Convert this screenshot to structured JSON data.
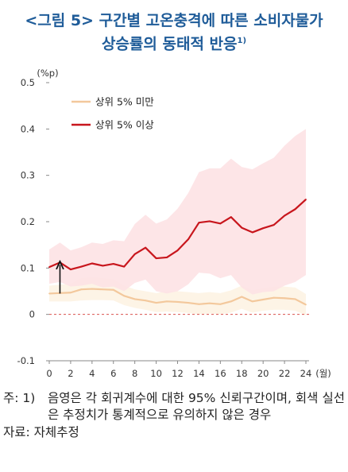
{
  "title": {
    "line1": "<그림 5> 구간별 고온충격에 따른 소비자물가",
    "line2": "상승률의 동태적 반응",
    "footnote_mark": "1)"
  },
  "notes": {
    "prefix": "주: 1)",
    "text": "음영은 각 회귀계수에 대한 95% 신뢰구간이며, 회색 실선은 추정치가 통계적으로 유의하지 않은 경우",
    "source": "자료: 자체추정"
  },
  "colors": {
    "title": "#1f5c99",
    "upper_line": "#c8161d",
    "upper_band": "#fde2e4",
    "lower_line": "#f3c89c",
    "lower_band": "#fdf3e3",
    "zero_line": "#d9534f"
  },
  "chart_data": {
    "type": "line",
    "ylabel": "(%p)",
    "xunit": "(월)",
    "ylim": [
      -0.1,
      0.5
    ],
    "yticks": [
      -0.1,
      0,
      0.1,
      0.2,
      0.3,
      0.4,
      0.5
    ],
    "ytick_labels": [
      "-0.1",
      "0",
      "0.1",
      "0.2",
      "0.3",
      "0.4",
      "0.5"
    ],
    "xlim": [
      0,
      24
    ],
    "xticks": [
      0,
      2,
      4,
      6,
      8,
      10,
      12,
      14,
      16,
      18,
      20,
      22,
      24
    ],
    "xtick_labels": [
      "0",
      "2",
      "4",
      "6",
      "8",
      "10",
      "12",
      "14",
      "16",
      "18",
      "20",
      "22",
      "24"
    ],
    "legend_position": "top-left",
    "x": [
      0,
      1,
      2,
      3,
      4,
      5,
      6,
      7,
      8,
      9,
      10,
      11,
      12,
      13,
      14,
      15,
      16,
      17,
      18,
      19,
      20,
      21,
      22,
      23,
      24
    ],
    "series": [
      {
        "name": "상위 5% 미만",
        "values": [
          0.045,
          0.046,
          0.047,
          0.054,
          0.055,
          0.054,
          0.053,
          0.04,
          0.033,
          0.03,
          0.025,
          0.028,
          0.027,
          0.025,
          0.022,
          0.024,
          0.022,
          0.028,
          0.038,
          0.028,
          0.032,
          0.036,
          0.035,
          0.033,
          0.021
        ],
        "band_low": [
          0.028,
          0.028,
          0.028,
          0.03,
          0.031,
          0.031,
          0.03,
          0.02,
          0.014,
          0.01,
          0.005,
          0.006,
          0.005,
          0.003,
          0.0,
          0.002,
          0.0,
          0.004,
          0.012,
          0.004,
          0.008,
          0.01,
          0.01,
          0.008,
          -0.002
        ],
        "band_high": [
          0.062,
          0.064,
          0.066,
          0.078,
          0.08,
          0.078,
          0.076,
          0.062,
          0.054,
          0.05,
          0.046,
          0.05,
          0.05,
          0.048,
          0.046,
          0.048,
          0.046,
          0.052,
          0.062,
          0.052,
          0.056,
          0.06,
          0.06,
          0.058,
          0.044
        ]
      },
      {
        "name": "상위 5% 이상",
        "values": [
          0.102,
          0.112,
          0.097,
          0.103,
          0.11,
          0.105,
          0.109,
          0.103,
          0.13,
          0.144,
          0.121,
          0.123,
          0.138,
          0.162,
          0.198,
          0.201,
          0.196,
          0.21,
          0.187,
          0.177,
          0.186,
          0.193,
          0.213,
          0.227,
          0.248
        ],
        "band_low": [
          0.066,
          0.07,
          0.06,
          0.062,
          0.066,
          0.058,
          0.06,
          0.05,
          0.068,
          0.075,
          0.05,
          0.045,
          0.05,
          0.065,
          0.09,
          0.088,
          0.078,
          0.085,
          0.058,
          0.043,
          0.048,
          0.05,
          0.062,
          0.07,
          0.085
        ],
        "band_high": [
          0.14,
          0.155,
          0.138,
          0.145,
          0.155,
          0.152,
          0.16,
          0.158,
          0.195,
          0.215,
          0.196,
          0.205,
          0.228,
          0.262,
          0.307,
          0.315,
          0.315,
          0.336,
          0.318,
          0.313,
          0.326,
          0.338,
          0.364,
          0.385,
          0.4
        ]
      }
    ],
    "annotations": [
      {
        "type": "arrow",
        "x": 1,
        "from_y": 0.045,
        "to_y": 0.112
      }
    ],
    "reference_lines": [
      {
        "type": "hline",
        "y": 0,
        "style": "dashed"
      }
    ]
  }
}
